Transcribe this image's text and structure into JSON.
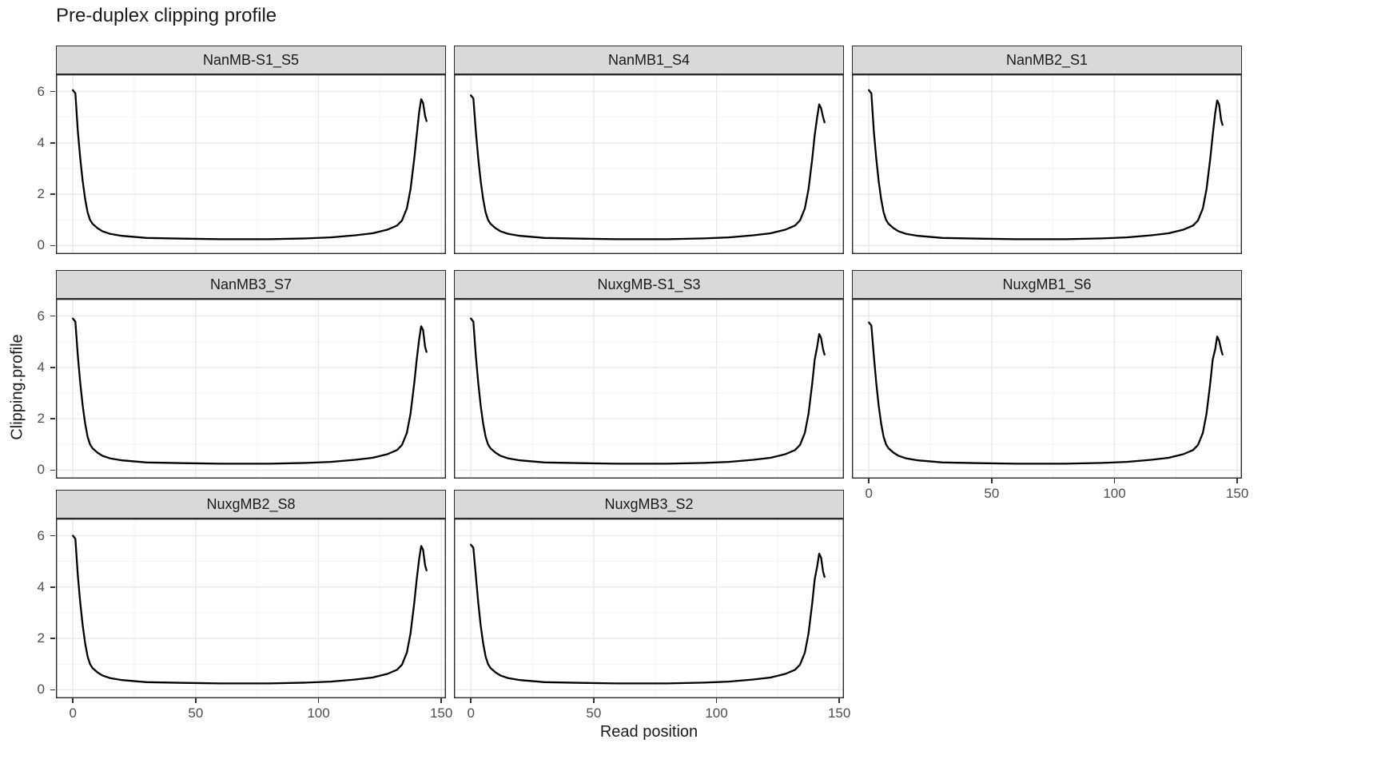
{
  "title": "Pre-duplex clipping profile",
  "axes": {
    "x_label": "Read position",
    "y_label": "Clipping.profile"
  },
  "colors": {
    "curve": "#000000",
    "strip_bg": "#d9d9d9",
    "panel_border": "#2b2b2b",
    "grid_major": "#e8e8e8",
    "grid_minor": "#f2f2f2",
    "axis_text": "#4d4d4d",
    "tick_mark": "#333333"
  },
  "chart_data": {
    "type": "line",
    "title": "Pre-duplex clipping profile",
    "xlabel": "Read position",
    "ylabel": "Clipping.profile",
    "xlim": [
      -6.9,
      151.9
    ],
    "ylim": [
      -0.33,
      6.67
    ],
    "x_ticks": [
      0,
      50,
      100,
      150
    ],
    "y_ticks": [
      0,
      2,
      4,
      6
    ],
    "x_minor_ticks": [
      25,
      75,
      125
    ],
    "y_minor_ticks": [
      1,
      3,
      5
    ],
    "grid": true,
    "legend": "none",
    "facet_layout": {
      "columns": 3,
      "rows": 3
    },
    "facets": [
      {
        "label": "NanMB-S1_S5",
        "points": [
          [
            0,
            6.05
          ],
          [
            1,
            5.93
          ],
          [
            2,
            4.45
          ],
          [
            3,
            3.4
          ],
          [
            4,
            2.5
          ],
          [
            5,
            1.8
          ],
          [
            6,
            1.3
          ],
          [
            7,
            1.0
          ],
          [
            8,
            0.85
          ],
          [
            10,
            0.68
          ],
          [
            12,
            0.56
          ],
          [
            15,
            0.46
          ],
          [
            20,
            0.38
          ],
          [
            30,
            0.3
          ],
          [
            45,
            0.27
          ],
          [
            60,
            0.25
          ],
          [
            80,
            0.25
          ],
          [
            95,
            0.28
          ],
          [
            105,
            0.32
          ],
          [
            115,
            0.4
          ],
          [
            122,
            0.48
          ],
          [
            128,
            0.62
          ],
          [
            132,
            0.78
          ],
          [
            134,
            0.98
          ],
          [
            136,
            1.45
          ],
          [
            137.5,
            2.2
          ],
          [
            139,
            3.4
          ],
          [
            140,
            4.3
          ],
          [
            141,
            5.2
          ],
          [
            141.8,
            5.7
          ],
          [
            142.6,
            5.55
          ],
          [
            143.4,
            5.05
          ],
          [
            144,
            4.85
          ]
        ]
      },
      {
        "label": "NanMB1_S4",
        "points": [
          [
            0,
            5.85
          ],
          [
            1,
            5.73
          ],
          [
            2,
            4.45
          ],
          [
            3,
            3.4
          ],
          [
            4,
            2.5
          ],
          [
            5,
            1.8
          ],
          [
            6,
            1.3
          ],
          [
            7,
            1.0
          ],
          [
            8,
            0.85
          ],
          [
            10,
            0.68
          ],
          [
            12,
            0.56
          ],
          [
            15,
            0.46
          ],
          [
            20,
            0.38
          ],
          [
            30,
            0.3
          ],
          [
            45,
            0.27
          ],
          [
            60,
            0.25
          ],
          [
            80,
            0.25
          ],
          [
            95,
            0.28
          ],
          [
            105,
            0.32
          ],
          [
            115,
            0.4
          ],
          [
            122,
            0.48
          ],
          [
            128,
            0.62
          ],
          [
            132,
            0.78
          ],
          [
            134,
            0.98
          ],
          [
            136,
            1.45
          ],
          [
            137.5,
            2.2
          ],
          [
            139,
            3.4
          ],
          [
            140,
            4.3
          ],
          [
            141,
            5.0
          ],
          [
            141.8,
            5.5
          ],
          [
            142.6,
            5.35
          ],
          [
            143.4,
            5.0
          ],
          [
            144,
            4.8
          ]
        ]
      },
      {
        "label": "NanMB2_S1",
        "points": [
          [
            0,
            6.05
          ],
          [
            1,
            5.93
          ],
          [
            2,
            4.45
          ],
          [
            3,
            3.4
          ],
          [
            4,
            2.5
          ],
          [
            5,
            1.8
          ],
          [
            6,
            1.3
          ],
          [
            7,
            1.0
          ],
          [
            8,
            0.85
          ],
          [
            10,
            0.68
          ],
          [
            12,
            0.56
          ],
          [
            15,
            0.46
          ],
          [
            20,
            0.38
          ],
          [
            30,
            0.3
          ],
          [
            45,
            0.27
          ],
          [
            60,
            0.25
          ],
          [
            80,
            0.25
          ],
          [
            95,
            0.28
          ],
          [
            105,
            0.32
          ],
          [
            115,
            0.4
          ],
          [
            122,
            0.48
          ],
          [
            128,
            0.62
          ],
          [
            132,
            0.78
          ],
          [
            134,
            0.98
          ],
          [
            136,
            1.45
          ],
          [
            137.5,
            2.2
          ],
          [
            139,
            3.4
          ],
          [
            140,
            4.3
          ],
          [
            141,
            5.15
          ],
          [
            141.8,
            5.65
          ],
          [
            142.6,
            5.5
          ],
          [
            143.4,
            4.9
          ],
          [
            144,
            4.7
          ]
        ]
      },
      {
        "label": "NanMB3_S7",
        "points": [
          [
            0,
            5.9
          ],
          [
            1,
            5.78
          ],
          [
            2,
            4.45
          ],
          [
            3,
            3.4
          ],
          [
            4,
            2.5
          ],
          [
            5,
            1.8
          ],
          [
            6,
            1.3
          ],
          [
            7,
            1.0
          ],
          [
            8,
            0.85
          ],
          [
            10,
            0.68
          ],
          [
            12,
            0.56
          ],
          [
            15,
            0.46
          ],
          [
            20,
            0.38
          ],
          [
            30,
            0.3
          ],
          [
            45,
            0.27
          ],
          [
            60,
            0.25
          ],
          [
            80,
            0.25
          ],
          [
            95,
            0.28
          ],
          [
            105,
            0.32
          ],
          [
            115,
            0.4
          ],
          [
            122,
            0.48
          ],
          [
            128,
            0.62
          ],
          [
            132,
            0.78
          ],
          [
            134,
            0.98
          ],
          [
            136,
            1.45
          ],
          [
            137.5,
            2.2
          ],
          [
            139,
            3.4
          ],
          [
            140,
            4.3
          ],
          [
            141,
            5.1
          ],
          [
            141.8,
            5.6
          ],
          [
            142.6,
            5.45
          ],
          [
            143.4,
            4.8
          ],
          [
            144,
            4.6
          ]
        ]
      },
      {
        "label": "NuxgMB-S1_S3",
        "points": [
          [
            0,
            5.9
          ],
          [
            1,
            5.78
          ],
          [
            2,
            4.45
          ],
          [
            3,
            3.4
          ],
          [
            4,
            2.5
          ],
          [
            5,
            1.8
          ],
          [
            6,
            1.3
          ],
          [
            7,
            1.0
          ],
          [
            8,
            0.85
          ],
          [
            10,
            0.68
          ],
          [
            12,
            0.56
          ],
          [
            15,
            0.46
          ],
          [
            20,
            0.38
          ],
          [
            30,
            0.3
          ],
          [
            45,
            0.27
          ],
          [
            60,
            0.25
          ],
          [
            80,
            0.25
          ],
          [
            95,
            0.28
          ],
          [
            105,
            0.32
          ],
          [
            115,
            0.4
          ],
          [
            122,
            0.48
          ],
          [
            128,
            0.62
          ],
          [
            132,
            0.78
          ],
          [
            134,
            0.98
          ],
          [
            136,
            1.45
          ],
          [
            137.5,
            2.2
          ],
          [
            139,
            3.4
          ],
          [
            140,
            4.3
          ],
          [
            141,
            4.8
          ],
          [
            141.8,
            5.3
          ],
          [
            142.6,
            5.15
          ],
          [
            143.4,
            4.7
          ],
          [
            144,
            4.5
          ]
        ]
      },
      {
        "label": "NuxgMB1_S6",
        "points": [
          [
            0,
            5.75
          ],
          [
            1,
            5.63
          ],
          [
            2,
            4.45
          ],
          [
            3,
            3.4
          ],
          [
            4,
            2.5
          ],
          [
            5,
            1.8
          ],
          [
            6,
            1.3
          ],
          [
            7,
            1.0
          ],
          [
            8,
            0.85
          ],
          [
            10,
            0.68
          ],
          [
            12,
            0.56
          ],
          [
            15,
            0.46
          ],
          [
            20,
            0.38
          ],
          [
            30,
            0.3
          ],
          [
            45,
            0.27
          ],
          [
            60,
            0.25
          ],
          [
            80,
            0.25
          ],
          [
            95,
            0.28
          ],
          [
            105,
            0.32
          ],
          [
            115,
            0.4
          ],
          [
            122,
            0.48
          ],
          [
            128,
            0.62
          ],
          [
            132,
            0.78
          ],
          [
            134,
            0.98
          ],
          [
            136,
            1.45
          ],
          [
            137.5,
            2.2
          ],
          [
            139,
            3.4
          ],
          [
            140,
            4.3
          ],
          [
            141,
            4.7
          ],
          [
            141.8,
            5.2
          ],
          [
            142.6,
            5.05
          ],
          [
            143.4,
            4.7
          ],
          [
            144,
            4.5
          ]
        ]
      },
      {
        "label": "NuxgMB2_S8",
        "points": [
          [
            0,
            6.0
          ],
          [
            1,
            5.88
          ],
          [
            2,
            4.45
          ],
          [
            3,
            3.4
          ],
          [
            4,
            2.5
          ],
          [
            5,
            1.8
          ],
          [
            6,
            1.3
          ],
          [
            7,
            1.0
          ],
          [
            8,
            0.85
          ],
          [
            10,
            0.68
          ],
          [
            12,
            0.56
          ],
          [
            15,
            0.46
          ],
          [
            20,
            0.38
          ],
          [
            30,
            0.3
          ],
          [
            45,
            0.27
          ],
          [
            60,
            0.25
          ],
          [
            80,
            0.25
          ],
          [
            95,
            0.28
          ],
          [
            105,
            0.32
          ],
          [
            115,
            0.4
          ],
          [
            122,
            0.48
          ],
          [
            128,
            0.62
          ],
          [
            132,
            0.78
          ],
          [
            134,
            0.98
          ],
          [
            136,
            1.45
          ],
          [
            137.5,
            2.2
          ],
          [
            139,
            3.4
          ],
          [
            140,
            4.3
          ],
          [
            141,
            5.1
          ],
          [
            141.8,
            5.6
          ],
          [
            142.6,
            5.45
          ],
          [
            143.4,
            4.85
          ],
          [
            144,
            4.65
          ]
        ]
      },
      {
        "label": "NuxgMB3_S2",
        "points": [
          [
            0,
            5.65
          ],
          [
            1,
            5.53
          ],
          [
            2,
            4.45
          ],
          [
            3,
            3.4
          ],
          [
            4,
            2.5
          ],
          [
            5,
            1.8
          ],
          [
            6,
            1.3
          ],
          [
            7,
            1.0
          ],
          [
            8,
            0.85
          ],
          [
            10,
            0.68
          ],
          [
            12,
            0.56
          ],
          [
            15,
            0.46
          ],
          [
            20,
            0.38
          ],
          [
            30,
            0.3
          ],
          [
            45,
            0.27
          ],
          [
            60,
            0.25
          ],
          [
            80,
            0.25
          ],
          [
            95,
            0.28
          ],
          [
            105,
            0.32
          ],
          [
            115,
            0.4
          ],
          [
            122,
            0.48
          ],
          [
            128,
            0.62
          ],
          [
            132,
            0.78
          ],
          [
            134,
            0.98
          ],
          [
            136,
            1.45
          ],
          [
            137.5,
            2.2
          ],
          [
            139,
            3.4
          ],
          [
            140,
            4.3
          ],
          [
            141,
            4.8
          ],
          [
            141.8,
            5.3
          ],
          [
            142.6,
            5.15
          ],
          [
            143.4,
            4.6
          ],
          [
            144,
            4.4
          ]
        ]
      }
    ]
  }
}
